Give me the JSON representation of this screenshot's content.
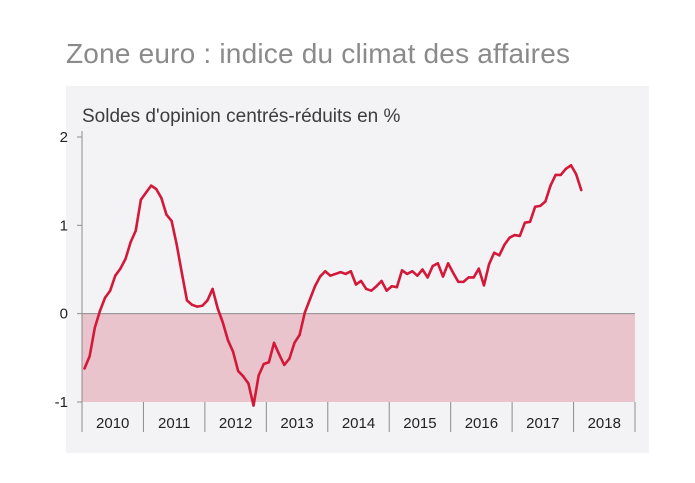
{
  "page": {
    "title": "Zone euro : indice du climat des affaires"
  },
  "colors": {
    "panel_background": "#f3f3f5",
    "negative_zone": "#e9c4cc",
    "line": "#d31839",
    "axis": "#8c8c8c",
    "title": "#8a8a8a",
    "text": "#222222"
  },
  "chart_data": {
    "type": "line",
    "subtitle": "Soldes d'opinion centrés-réduits en %",
    "ylim": [
      -1,
      2
    ],
    "yticks": [
      -1,
      0,
      1,
      2
    ],
    "ytick_labels": [
      "-1",
      "0",
      "1",
      "2"
    ],
    "shaded_band": {
      "from": -1,
      "to": 0
    },
    "x_categories": [
      "2010",
      "2011",
      "2012",
      "2013",
      "2014",
      "2015",
      "2016",
      "2017",
      "2018"
    ],
    "grid": false,
    "legend": "none",
    "series": [
      {
        "frequency": "monthly",
        "start": "2010-01",
        "values": [
          -0.62,
          -0.48,
          -0.16,
          0.03,
          0.18,
          0.26,
          0.43,
          0.51,
          0.62,
          0.81,
          0.94,
          1.29,
          1.37,
          1.45,
          1.41,
          1.31,
          1.12,
          1.05,
          0.78,
          0.46,
          0.15,
          0.1,
          0.08,
          0.09,
          0.15,
          0.28,
          0.06,
          -0.1,
          -0.3,
          -0.43,
          -0.65,
          -0.71,
          -0.79,
          -1.04,
          -0.7,
          -0.57,
          -0.55,
          -0.33,
          -0.46,
          -0.58,
          -0.51,
          -0.33,
          -0.24,
          0.01,
          0.16,
          0.31,
          0.42,
          0.48,
          0.43,
          0.45,
          0.47,
          0.45,
          0.48,
          0.33,
          0.37,
          0.28,
          0.26,
          0.31,
          0.37,
          0.26,
          0.31,
          0.3,
          0.49,
          0.45,
          0.48,
          0.43,
          0.5,
          0.41,
          0.54,
          0.57,
          0.42,
          0.57,
          0.46,
          0.36,
          0.36,
          0.41,
          0.41,
          0.51,
          0.32,
          0.56,
          0.69,
          0.66,
          0.78,
          0.86,
          0.89,
          0.88,
          1.03,
          1.04,
          1.21,
          1.22,
          1.27,
          1.45,
          1.57,
          1.57,
          1.64,
          1.68,
          1.58,
          1.4
        ]
      }
    ]
  }
}
